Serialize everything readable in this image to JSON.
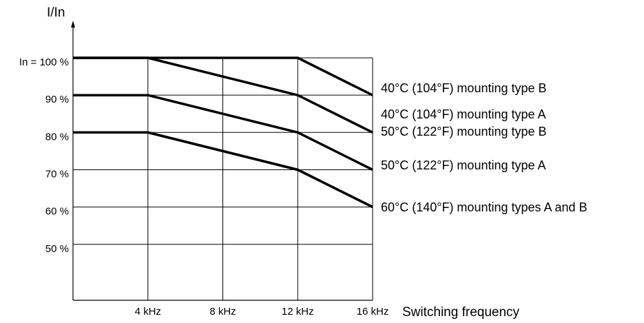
{
  "chart_data": {
    "type": "line",
    "ylabel": "I/In",
    "xlabel": "Switching frequency",
    "x_ticks": [
      {
        "value": 4,
        "label": "4 kHz"
      },
      {
        "value": 8,
        "label": "8 kHz"
      },
      {
        "value": 12,
        "label": "12 kHz"
      },
      {
        "value": 16,
        "label": "16 kHz"
      }
    ],
    "y_ticks": [
      {
        "value": 100,
        "label": "In = 100 %"
      },
      {
        "value": 90,
        "label": "90 %"
      },
      {
        "value": 80,
        "label": "80 %"
      },
      {
        "value": 70,
        "label": "70 %"
      },
      {
        "value": 60,
        "label": "60 %"
      },
      {
        "value": 50,
        "label": "50 %"
      }
    ],
    "xlim": [
      0,
      16
    ],
    "ylim": [
      35,
      100
    ],
    "grid": true,
    "series": [
      {
        "name": "40°C (104°F) mounting type B",
        "x": [
          0,
          4,
          12,
          16
        ],
        "y": [
          100,
          100,
          100,
          90
        ]
      },
      {
        "name": "40°C (104°F) mounting type A",
        "x": [
          0,
          4,
          12,
          16
        ],
        "y": [
          100,
          100,
          90,
          80
        ]
      },
      {
        "name": "50°C (122°F) mounting type B",
        "x": [
          0,
          4,
          12,
          16
        ],
        "y": [
          90,
          90,
          80,
          70
        ]
      },
      {
        "name": "50°C (122°F) mounting type A",
        "x": [
          0,
          4,
          12,
          16
        ],
        "y": [
          80,
          80,
          70,
          60
        ]
      },
      {
        "name": "60°C (140°F) mounting types A and B",
        "x": [
          0,
          4,
          12,
          16
        ],
        "y": [
          80,
          80,
          70,
          60
        ]
      }
    ]
  }
}
